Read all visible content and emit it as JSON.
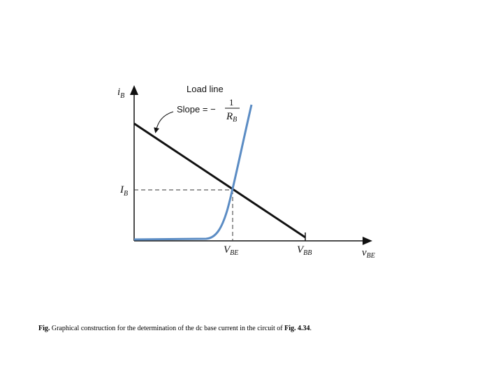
{
  "diagram": {
    "axis_y_label": {
      "main": "i",
      "sub": "B"
    },
    "axis_x_label": {
      "main": "v",
      "sub": "BE"
    },
    "load_line_label": "Load line",
    "slope_label": "Slope = −",
    "slope_numerator": "1",
    "slope_denominator": {
      "main": "R",
      "sub": "B"
    },
    "ib_label": {
      "main": "I",
      "sub": "B"
    },
    "vbe_label": {
      "main": "V",
      "sub": "BE"
    },
    "vbb_label": {
      "main": "V",
      "sub": "BB"
    }
  },
  "caption": {
    "prefix": "Fig.",
    "text": " Graphical construction for the determination of the dc base current in the circuit of ",
    "ref": "Fig. 4.34",
    "end": "."
  }
}
